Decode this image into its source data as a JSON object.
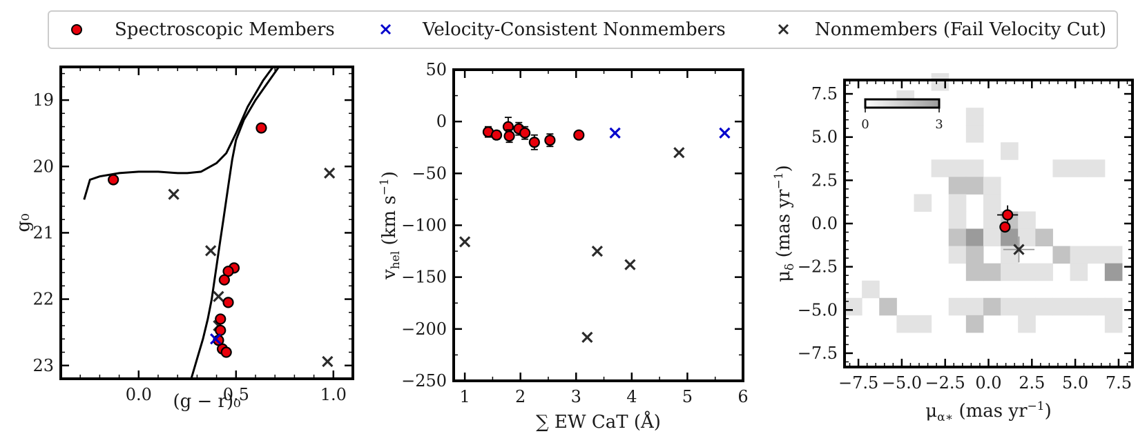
{
  "colors": {
    "member_fill": "#e8000b",
    "member_edge": "#000000",
    "vel_consistent": "#0000cc",
    "nonmember": "#2b2b2b",
    "frame": "#000000"
  },
  "legend": {
    "entries": [
      {
        "label": "Spectroscopic Members",
        "marker": "circle"
      },
      {
        "label": "Velocity-Consistent Nonmembers",
        "marker": "x-blue"
      },
      {
        "label": "Nonmembers (Fail Velocity Cut)",
        "marker": "x-dark"
      }
    ]
  },
  "chart_data": [
    {
      "type": "scatter",
      "name": "cmd",
      "xlabel": "(g − r)₀",
      "ylabel": "g₀",
      "xlim": [
        -0.4,
        1.1
      ],
      "ylim": [
        23.2,
        18.5
      ],
      "xticks": [
        0.0,
        0.5,
        1.0
      ],
      "xtick_labels": [
        "0.0",
        "0.5",
        "1.0"
      ],
      "yticks": [
        19,
        20,
        21,
        22,
        23
      ],
      "ytick_labels": [
        "19",
        "20",
        "21",
        "22",
        "23"
      ],
      "isochrone_rgb": {
        "x": [
          0.27,
          0.3,
          0.33,
          0.355,
          0.375,
          0.39,
          0.405,
          0.42,
          0.435,
          0.45,
          0.465,
          0.48,
          0.5,
          0.54,
          0.6,
          0.66,
          0.72
        ],
        "y": [
          23.2,
          22.9,
          22.6,
          22.3,
          22.0,
          21.7,
          21.4,
          21.1,
          20.8,
          20.5,
          20.2,
          19.9,
          19.6,
          19.3,
          19.0,
          18.75,
          18.5
        ]
      },
      "isochrone_hb": {
        "x": [
          -0.28,
          -0.25,
          -0.2,
          -0.1,
          0.0,
          0.1,
          0.2,
          0.25,
          0.32,
          0.4,
          0.45,
          0.5,
          0.53,
          0.56,
          0.6,
          0.64,
          0.69
        ],
        "y": [
          20.5,
          20.2,
          20.15,
          20.1,
          20.08,
          20.08,
          20.1,
          20.1,
          20.08,
          19.95,
          19.8,
          19.5,
          19.3,
          19.1,
          18.9,
          18.7,
          18.5
        ]
      },
      "series": [
        {
          "name": "Spectroscopic Members",
          "marker": "circle",
          "x": [
            -0.13,
            0.63,
            0.49,
            0.46,
            0.44,
            0.46,
            0.42,
            0.42,
            0.43,
            0.45,
            0.41
          ],
          "y": [
            20.2,
            19.42,
            21.53,
            21.58,
            21.71,
            22.05,
            22.3,
            22.47,
            22.75,
            22.8,
            22.62
          ]
        },
        {
          "name": "Velocity-Consistent Nonmembers",
          "marker": "x-blue",
          "x": [
            0.395
          ],
          "y": [
            22.6
          ]
        },
        {
          "name": "Nonmembers (Fail Velocity Cut)",
          "marker": "x-dark",
          "x": [
            0.18,
            0.98,
            0.37,
            0.41,
            0.41,
            0.97
          ],
          "y": [
            20.42,
            20.1,
            21.27,
            21.96,
            22.4,
            22.94
          ]
        }
      ]
    },
    {
      "type": "scatter",
      "name": "velocity_vs_ew",
      "xlabel": "∑ EW CaT (Å)",
      "ylabel": "v_hel (km s⁻¹)",
      "ylabel_main": "v",
      "ylabel_sub": "hel",
      "ylabel_units": " (km s",
      "ylabel_exp": "−1",
      "ylabel_close": ")",
      "xlim": [
        0.8,
        6.0
      ],
      "ylim": [
        -250,
        50
      ],
      "xticks": [
        1,
        2,
        3,
        4,
        5,
        6
      ],
      "xtick_labels": [
        "1",
        "2",
        "3",
        "4",
        "5",
        "6"
      ],
      "yticks": [
        50,
        0,
        -50,
        -100,
        -150,
        -200,
        -250
      ],
      "ytick_labels": [
        "50",
        "0",
        "−50",
        "−100",
        "−150",
        "−200",
        "−250"
      ],
      "series": [
        {
          "name": "Spectroscopic Members",
          "marker": "circle",
          "x": [
            1.42,
            1.57,
            1.78,
            1.8,
            1.97,
            2.08,
            2.25,
            2.53,
            3.05
          ],
          "y": [
            -10,
            -13,
            -5,
            -14,
            -7,
            -11,
            -20,
            -18,
            -13
          ],
          "yerr": [
            5,
            4,
            9,
            6,
            6,
            6,
            7,
            6,
            3
          ]
        },
        {
          "name": "Velocity-Consistent Nonmembers",
          "marker": "x-blue",
          "x": [
            3.7,
            5.67
          ],
          "y": [
            -11,
            -11
          ]
        },
        {
          "name": "Nonmembers (Fail Velocity Cut)",
          "marker": "x-dark",
          "x": [
            1.0,
            3.2,
            3.38,
            3.97,
            4.85
          ],
          "y": [
            -116,
            -208,
            -125,
            -138,
            -30
          ]
        }
      ]
    },
    {
      "type": "scatter",
      "name": "proper_motion",
      "xlabel": "μ_α* (mas yr⁻¹)",
      "xlabel_main": "μ",
      "xlabel_sub": "α∗",
      "xlabel_units": " (mas yr",
      "xlabel_exp": "−1",
      "xlabel_close": ")",
      "ylabel": "μ_δ (mas yr⁻¹)",
      "ylabel_main": "μ",
      "ylabel_sub": "δ",
      "ylabel_units": " (mas yr",
      "ylabel_exp": "−1",
      "ylabel_close": ")",
      "xlim": [
        -8.3,
        8.3
      ],
      "ylim": [
        -8.3,
        8.3
      ],
      "xticks": [
        -7.5,
        -5.0,
        -2.5,
        0.0,
        2.5,
        5.0,
        7.5
      ],
      "xtick_labels": [
        "−7.5",
        "−5.0",
        "−2.5",
        "0.0",
        "2.5",
        "5.0",
        "7.5"
      ],
      "yticks": [
        7.5,
        5.0,
        2.5,
        0.0,
        -2.5,
        -5.0,
        -7.5
      ],
      "ytick_labels": [
        "7.5",
        "5.0",
        "2.5",
        "0.0",
        "−2.5",
        "−5.0",
        "−7.5"
      ],
      "colorbar": {
        "min": 0,
        "max": 3,
        "labels": [
          "0",
          "3"
        ]
      },
      "density_bin_size": 1.0,
      "density_x0": -8.3,
      "density_y0": -8.3,
      "density_cells": [
        [
          5,
          16,
          1
        ],
        [
          3,
          15,
          1
        ],
        [
          7,
          14,
          1
        ],
        [
          7,
          13,
          1
        ],
        [
          9,
          12,
          1
        ],
        [
          5,
          11,
          1
        ],
        [
          6,
          11,
          1
        ],
        [
          7,
          11,
          1
        ],
        [
          12,
          11,
          1
        ],
        [
          13,
          11,
          1
        ],
        [
          14,
          11,
          1
        ],
        [
          6,
          10,
          2
        ],
        [
          7,
          10,
          2
        ],
        [
          8,
          10,
          1
        ],
        [
          4,
          9,
          1
        ],
        [
          6,
          9,
          1
        ],
        [
          8,
          9,
          1
        ],
        [
          6,
          8,
          1
        ],
        [
          8,
          8,
          1
        ],
        [
          9,
          8,
          2
        ],
        [
          10,
          8,
          1
        ],
        [
          6,
          7,
          2
        ],
        [
          7,
          7,
          3
        ],
        [
          8,
          7,
          1
        ],
        [
          9,
          7,
          3
        ],
        [
          10,
          7,
          1
        ],
        [
          11,
          7,
          2
        ],
        [
          6,
          6,
          1
        ],
        [
          7,
          6,
          2
        ],
        [
          9,
          6,
          1
        ],
        [
          12,
          6,
          2
        ],
        [
          13,
          6,
          1
        ],
        [
          14,
          6,
          1
        ],
        [
          15,
          6,
          1
        ],
        [
          7,
          5,
          2
        ],
        [
          8,
          5,
          2
        ],
        [
          9,
          5,
          1
        ],
        [
          10,
          5,
          1
        ],
        [
          11,
          5,
          1
        ],
        [
          13,
          5,
          1
        ],
        [
          15,
          5,
          3
        ],
        [
          1,
          4,
          1
        ],
        [
          0,
          3,
          1
        ],
        [
          2,
          3,
          2
        ],
        [
          6,
          3,
          1
        ],
        [
          7,
          3,
          1
        ],
        [
          8,
          3,
          2
        ],
        [
          9,
          3,
          1
        ],
        [
          10,
          3,
          1
        ],
        [
          11,
          3,
          1
        ],
        [
          12,
          3,
          1
        ],
        [
          13,
          3,
          1
        ],
        [
          14,
          3,
          1
        ],
        [
          15,
          3,
          1
        ],
        [
          3,
          2,
          1
        ],
        [
          4,
          2,
          1
        ],
        [
          7,
          2,
          2
        ],
        [
          10,
          2,
          1
        ],
        [
          15,
          2,
          1
        ]
      ],
      "series": [
        {
          "name": "Spectroscopic Members",
          "marker": "circle",
          "x": [
            1.1,
            0.95
          ],
          "y": [
            0.5,
            -0.2
          ],
          "xerr": [
            0.6,
            0
          ],
          "yerr": [
            0.55,
            0
          ]
        },
        {
          "name": "Nonmembers (Fail Velocity Cut)",
          "marker": "x-dark",
          "x": [
            1.75
          ],
          "y": [
            -1.5
          ],
          "xerr": [
            0.9
          ],
          "yerr": [
            0.75
          ]
        }
      ]
    }
  ]
}
